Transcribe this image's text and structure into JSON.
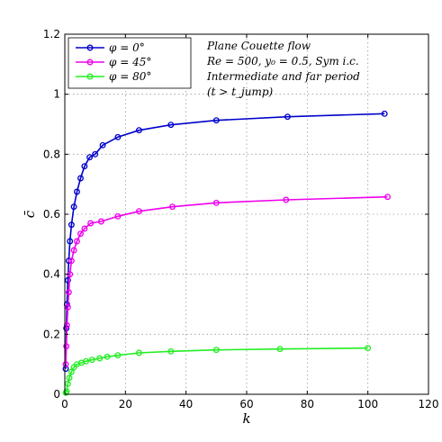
{
  "chart_data": {
    "type": "line",
    "xlabel": "k",
    "ylabel": "c̄",
    "xlim": [
      0,
      120
    ],
    "ylim": [
      0,
      1.2
    ],
    "xticks": [
      "0",
      "20",
      "40",
      "60",
      "80",
      "100",
      "120"
    ],
    "yticks": [
      "0",
      "0.2",
      "0.4",
      "0.6",
      "0.8",
      "1",
      "1.2"
    ],
    "grid": true,
    "legend_position": "top-left",
    "annotations": [
      "Plane Couette flow",
      "Re = 500,  y₀ = 0.5,  Sym i.c.",
      "Intermediate and far period",
      "(t > t_jump)"
    ],
    "series": [
      {
        "name": "φ = 0°",
        "color": "#0000cc",
        "x": [
          0.3,
          0.5,
          0.7,
          1.0,
          1.3,
          1.7,
          2.2,
          3.0,
          4.0,
          5.2,
          6.5,
          8.2,
          10.0,
          12.5,
          17.5,
          24.5,
          35.0,
          50.0,
          73.5,
          105.5
        ],
        "y": [
          0.085,
          0.22,
          0.3,
          0.38,
          0.445,
          0.51,
          0.565,
          0.625,
          0.675,
          0.72,
          0.76,
          0.79,
          0.8,
          0.83,
          0.857,
          0.88,
          0.898,
          0.913,
          0.925,
          0.935
        ]
      },
      {
        "name": "φ = 45°",
        "color": "#ee00ee",
        "x": [
          0.3,
          0.5,
          0.7,
          1.0,
          1.3,
          1.7,
          2.2,
          3.0,
          4.0,
          5.2,
          6.5,
          8.5,
          12.0,
          17.5,
          24.5,
          35.5,
          50.0,
          73.0,
          106.5
        ],
        "y": [
          0.1,
          0.16,
          0.23,
          0.29,
          0.34,
          0.4,
          0.445,
          0.48,
          0.51,
          0.535,
          0.552,
          0.57,
          0.576,
          0.593,
          0.61,
          0.625,
          0.638,
          0.648,
          0.658
        ]
      },
      {
        "name": "φ = 80°",
        "color": "#22ee22",
        "x": [
          0.3,
          0.6,
          1.0,
          1.5,
          2.2,
          3.0,
          4.0,
          5.5,
          7.0,
          9.0,
          11.5,
          14.0,
          17.5,
          24.5,
          35.0,
          50.0,
          71.0,
          100.0
        ],
        "y": [
          0.005,
          0.01,
          0.035,
          0.055,
          0.075,
          0.09,
          0.1,
          0.105,
          0.11,
          0.115,
          0.12,
          0.125,
          0.13,
          0.138,
          0.143,
          0.148,
          0.151,
          0.154
        ]
      }
    ]
  }
}
